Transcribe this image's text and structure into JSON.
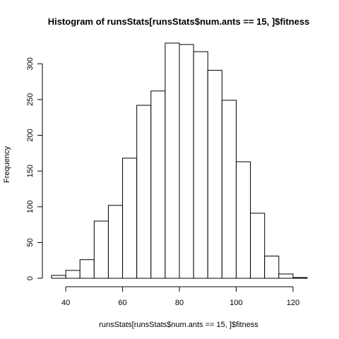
{
  "chart_data": {
    "type": "bar",
    "title": "Histogram of runsStats[runsStats$num.ants == 15, ]$fitness",
    "xlabel": "runsStats[runsStats$num.ants == 15, ]$fitness",
    "ylabel": "Frequency",
    "bin_edges": [
      35,
      40,
      45,
      50,
      55,
      60,
      65,
      70,
      75,
      80,
      85,
      90,
      95,
      100,
      105,
      110,
      115,
      120,
      125
    ],
    "values": [
      4,
      11,
      26,
      80,
      102,
      168,
      242,
      262,
      329,
      327,
      317,
      291,
      249,
      163,
      91,
      31,
      6,
      1
    ],
    "xlim": [
      35,
      125
    ],
    "ylim": [
      0,
      330
    ],
    "x_ticks": [
      40,
      60,
      80,
      100,
      120
    ],
    "y_ticks": [
      0,
      50,
      100,
      150,
      200,
      250,
      300
    ],
    "grid": false,
    "legend": "none",
    "bar_fill": "#ffffff",
    "bar_stroke": "#000000"
  }
}
